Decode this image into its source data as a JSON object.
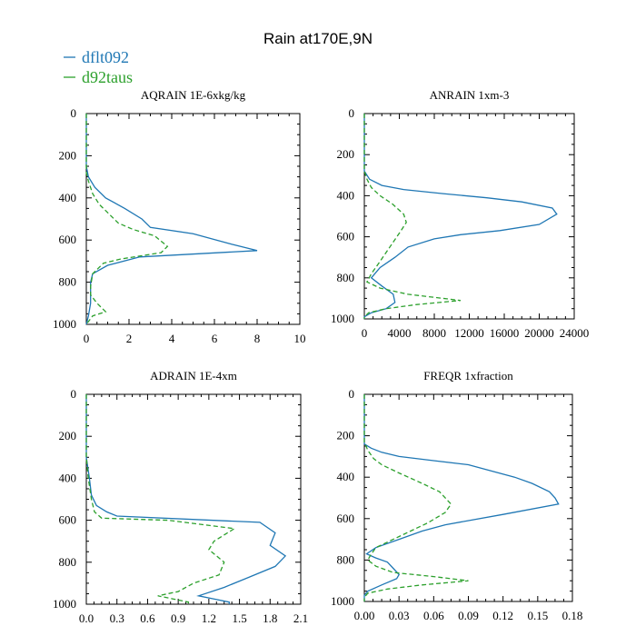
{
  "figure_title": "Rain at170E,9N",
  "colors": {
    "dflt": "#1f77b4",
    "d92": "#2ca02c"
  },
  "legend": [
    {
      "name": "dflt092",
      "color": "#1f77b4",
      "dash": "solid"
    },
    {
      "name": "d92taus",
      "color": "#2ca02c",
      "dash": "dashed"
    }
  ],
  "chart_data": [
    {
      "type": "line",
      "title": "AQRAIN  1E-6xkg/kg",
      "xlim": [
        0,
        10
      ],
      "ylim": [
        1000,
        0
      ],
      "xticks": [
        "0",
        "2",
        "4",
        "6",
        "8",
        "10"
      ],
      "xtick_values": [
        0,
        2,
        4,
        6,
        8,
        10
      ],
      "yticks": [
        "0",
        "200",
        "400",
        "600",
        "800",
        "1000"
      ],
      "ytick_values": [
        0,
        200,
        400,
        600,
        800,
        1000
      ],
      "series": [
        {
          "name": "dflt092",
          "color": "#1f77b4",
          "dash": "solid",
          "points": [
            [
              0,
              0
            ],
            [
              0,
              250
            ],
            [
              0.1,
              300
            ],
            [
              0.4,
              350
            ],
            [
              0.9,
              400
            ],
            [
              1.8,
              450
            ],
            [
              2.6,
              500
            ],
            [
              3,
              540
            ],
            [
              5,
              570
            ],
            [
              6.8,
              620
            ],
            [
              8,
              650
            ],
            [
              2.5,
              680
            ],
            [
              1,
              720
            ],
            [
              0.3,
              760
            ],
            [
              0.2,
              800
            ],
            [
              0.2,
              900
            ],
            [
              0.1,
              960
            ],
            [
              0,
              1000
            ]
          ]
        },
        {
          "name": "d92taus",
          "color": "#2ca02c",
          "dash": "dashed",
          "points": [
            [
              0,
              0
            ],
            [
              0,
              280
            ],
            [
              0.1,
              320
            ],
            [
              0.3,
              380
            ],
            [
              0.6,
              430
            ],
            [
              1.1,
              480
            ],
            [
              1.5,
              520
            ],
            [
              2.2,
              550
            ],
            [
              3.2,
              580
            ],
            [
              3.8,
              630
            ],
            [
              3.5,
              660
            ],
            [
              1.6,
              690
            ],
            [
              0.8,
              710
            ],
            [
              0.3,
              760
            ],
            [
              0.2,
              820
            ],
            [
              0.2,
              860
            ],
            [
              0.5,
              900
            ],
            [
              0.9,
              940
            ],
            [
              0.3,
              960
            ],
            [
              0,
              1000
            ]
          ]
        }
      ]
    },
    {
      "type": "line",
      "title": "ANRAIN  1xm-3",
      "xlim": [
        0,
        24000
      ],
      "ylim": [
        1000,
        0
      ],
      "xticks": [
        "0",
        "4000",
        "8000",
        "12000",
        "16000",
        "20000",
        "24000"
      ],
      "xtick_values": [
        0,
        4000,
        8000,
        12000,
        16000,
        20000,
        24000
      ],
      "yticks": [
        "0",
        "200",
        "400",
        "600",
        "800",
        "1000"
      ],
      "ytick_values": [
        0,
        200,
        400,
        600,
        800,
        1000
      ],
      "series": [
        {
          "name": "dflt092",
          "color": "#1f77b4",
          "dash": "solid",
          "points": [
            [
              0,
              0
            ],
            [
              0,
              280
            ],
            [
              600,
              320
            ],
            [
              2000,
              350
            ],
            [
              4500,
              370
            ],
            [
              9000,
              390
            ],
            [
              14000,
              410
            ],
            [
              18000,
              430
            ],
            [
              21500,
              460
            ],
            [
              22000,
              490
            ],
            [
              20000,
              540
            ],
            [
              15500,
              570
            ],
            [
              11000,
              590
            ],
            [
              8000,
              610
            ],
            [
              5000,
              650
            ],
            [
              3500,
              700
            ],
            [
              1800,
              750
            ],
            [
              800,
              800
            ],
            [
              2000,
              840
            ],
            [
              3300,
              880
            ],
            [
              3500,
              920
            ],
            [
              2500,
              950
            ],
            [
              800,
              970
            ],
            [
              0,
              990
            ],
            [
              0,
              1000
            ]
          ]
        },
        {
          "name": "d92taus",
          "color": "#2ca02c",
          "dash": "dashed",
          "points": [
            [
              0,
              0
            ],
            [
              0,
              280
            ],
            [
              300,
              320
            ],
            [
              800,
              360
            ],
            [
              1800,
              400
            ],
            [
              3200,
              440
            ],
            [
              4500,
              490
            ],
            [
              4800,
              530
            ],
            [
              4200,
              570
            ],
            [
              3400,
              620
            ],
            [
              2600,
              670
            ],
            [
              1800,
              720
            ],
            [
              800,
              780
            ],
            [
              300,
              820
            ],
            [
              1800,
              850
            ],
            [
              5000,
              880
            ],
            [
              9000,
              900
            ],
            [
              11000,
              910
            ],
            [
              6000,
              930
            ],
            [
              2500,
              950
            ],
            [
              500,
              970
            ],
            [
              0,
              990
            ],
            [
              0,
              1000
            ]
          ]
        }
      ]
    },
    {
      "type": "line",
      "title": "ADRAIN  1E-4xm",
      "xlim": [
        0,
        2.1
      ],
      "ylim": [
        1000,
        0
      ],
      "xticks": [
        "0.0",
        "0.3",
        "0.6",
        "0.9",
        "1.2",
        "1.5",
        "1.8",
        "2.1"
      ],
      "xtick_values": [
        0,
        0.3,
        0.6,
        0.9,
        1.2,
        1.5,
        1.8,
        2.1
      ],
      "yticks": [
        "0",
        "200",
        "400",
        "600",
        "800",
        "1000"
      ],
      "ytick_values": [
        0,
        200,
        400,
        600,
        800,
        1000
      ],
      "series": [
        {
          "name": "dflt092",
          "color": "#1f77b4",
          "dash": "solid",
          "points": [
            [
              0,
              0
            ],
            [
              0,
              300
            ],
            [
              0.03,
              400
            ],
            [
              0.05,
              480
            ],
            [
              0.1,
              530
            ],
            [
              0.2,
              560
            ],
            [
              0.3,
              580
            ],
            [
              1.7,
              610
            ],
            [
              1.85,
              660
            ],
            [
              1.8,
              720
            ],
            [
              1.95,
              770
            ],
            [
              1.85,
              820
            ],
            [
              1.6,
              870
            ],
            [
              1.35,
              920
            ],
            [
              1.1,
              960
            ],
            [
              1.25,
              975
            ],
            [
              1.4,
              990
            ],
            [
              1.4,
              1000
            ]
          ]
        },
        {
          "name": "d92taus",
          "color": "#2ca02c",
          "dash": "dashed",
          "points": [
            [
              0,
              0
            ],
            [
              0,
              300
            ],
            [
              0.02,
              400
            ],
            [
              0.05,
              500
            ],
            [
              0.08,
              560
            ],
            [
              0.15,
              590
            ],
            [
              0.8,
              600
            ],
            [
              1.45,
              640
            ],
            [
              1.25,
              700
            ],
            [
              1.2,
              740
            ],
            [
              1.35,
              800
            ],
            [
              1.3,
              860
            ],
            [
              1.05,
              900
            ],
            [
              0.9,
              940
            ],
            [
              0.7,
              960
            ],
            [
              0.85,
              975
            ],
            [
              1.0,
              990
            ],
            [
              1.0,
              1000
            ]
          ]
        }
      ]
    },
    {
      "type": "line",
      "title": "FREQR  1xfraction",
      "xlim": [
        0,
        0.18
      ],
      "ylim": [
        1000,
        0
      ],
      "xticks": [
        "0.00",
        "0.03",
        "0.06",
        "0.09",
        "0.12",
        "0.15",
        "0.18"
      ],
      "xtick_values": [
        0,
        0.03,
        0.06,
        0.09,
        0.12,
        0.15,
        0.18
      ],
      "yticks": [
        "0",
        "200",
        "400",
        "600",
        "800",
        "1000"
      ],
      "ytick_values": [
        0,
        200,
        400,
        600,
        800,
        1000
      ],
      "series": [
        {
          "name": "dflt092",
          "color": "#1f77b4",
          "dash": "solid",
          "points": [
            [
              0,
              0
            ],
            [
              0,
              240
            ],
            [
              0.006,
              260
            ],
            [
              0.015,
              280
            ],
            [
              0.03,
              300
            ],
            [
              0.06,
              320
            ],
            [
              0.09,
              340
            ],
            [
              0.11,
              370
            ],
            [
              0.13,
              400
            ],
            [
              0.145,
              430
            ],
            [
              0.16,
              470
            ],
            [
              0.165,
              500
            ],
            [
              0.168,
              530
            ],
            [
              0.12,
              580
            ],
            [
              0.07,
              630
            ],
            [
              0.05,
              660
            ],
            [
              0.03,
              700
            ],
            [
              0.01,
              740
            ],
            [
              0.002,
              770
            ],
            [
              0.01,
              790
            ],
            [
              0.02,
              810
            ],
            [
              0.025,
              840
            ],
            [
              0.03,
              870
            ],
            [
              0.028,
              890
            ],
            [
              0.015,
              920
            ],
            [
              0.003,
              950
            ],
            [
              0,
              970
            ],
            [
              0,
              1000
            ]
          ]
        },
        {
          "name": "d92taus",
          "color": "#2ca02c",
          "dash": "dashed",
          "points": [
            [
              0,
              0
            ],
            [
              0,
              230
            ],
            [
              0.003,
              270
            ],
            [
              0.008,
              310
            ],
            [
              0.015,
              340
            ],
            [
              0.03,
              380
            ],
            [
              0.05,
              430
            ],
            [
              0.065,
              470
            ],
            [
              0.075,
              530
            ],
            [
              0.07,
              570
            ],
            [
              0.055,
              620
            ],
            [
              0.04,
              660
            ],
            [
              0.025,
              700
            ],
            [
              0.01,
              740
            ],
            [
              0.005,
              780
            ],
            [
              0.003,
              800
            ],
            [
              0.01,
              830
            ],
            [
              0.025,
              860
            ],
            [
              0.06,
              880
            ],
            [
              0.09,
              900
            ],
            [
              0.05,
              920
            ],
            [
              0.02,
              940
            ],
            [
              0.003,
              960
            ],
            [
              0,
              980
            ],
            [
              0,
              1000
            ]
          ]
        }
      ]
    }
  ]
}
